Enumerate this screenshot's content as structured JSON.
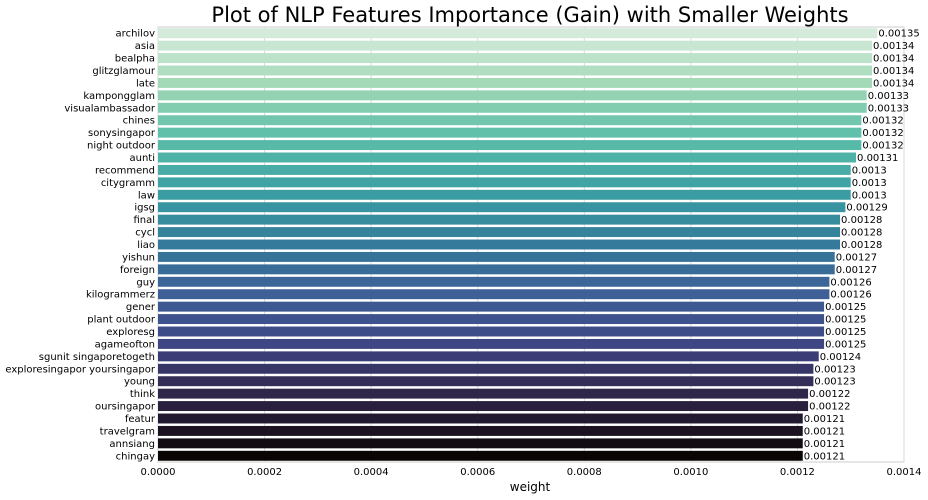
{
  "chart_data": {
    "type": "bar",
    "orientation": "horizontal",
    "title": "Plot of NLP Features Importance (Gain) with Smaller Weights",
    "xlabel": "weight",
    "ylabel": "",
    "xlim": [
      0,
      0.0014
    ],
    "x_ticks": [
      0.0,
      0.0002,
      0.0004,
      0.0006,
      0.0008,
      0.001,
      0.0012,
      0.0014
    ],
    "x_tick_labels": [
      "0.0000",
      "0.0002",
      "0.0004",
      "0.0006",
      "0.0008",
      "0.0010",
      "0.0012",
      "0.0014"
    ],
    "grid": "vertical",
    "categories": [
      "archilov",
      "asia",
      "bealpha",
      "glitzglamour",
      "late",
      "kampongglam",
      "visualambassador",
      "chines",
      "sonysingapor",
      "night outdoor",
      "aunti",
      "recommend",
      "citygramm",
      "law",
      "igsg",
      "final",
      "cycl",
      "liao",
      "yishun",
      "foreign",
      "guy",
      "kilogrammerz",
      "gener",
      "plant outdoor",
      "exploresg",
      "agameofton",
      "sgunit singaporetogeth",
      "exploresingapor yoursingapor",
      "young",
      "think",
      "oursingapor",
      "featur",
      "travelgram",
      "annsiang",
      "chingay"
    ],
    "values": [
      0.00135,
      0.00134,
      0.00134,
      0.00134,
      0.00134,
      0.00133,
      0.00133,
      0.00132,
      0.00132,
      0.00132,
      0.00131,
      0.0013,
      0.0013,
      0.0013,
      0.00129,
      0.00128,
      0.00128,
      0.00128,
      0.00127,
      0.00127,
      0.00126,
      0.00126,
      0.00125,
      0.00125,
      0.00125,
      0.00125,
      0.00124,
      0.00123,
      0.00123,
      0.00122,
      0.00122,
      0.00121,
      0.00121,
      0.00121,
      0.00121
    ],
    "value_labels": [
      "0.00135",
      "0.00134",
      "0.00134",
      "0.00134",
      "0.00134",
      "0.00133",
      "0.00133",
      "0.00132",
      "0.00132",
      "0.00132",
      "0.00131",
      "0.0013",
      "0.0013",
      "0.0013",
      "0.00129",
      "0.00128",
      "0.00128",
      "0.00128",
      "0.00127",
      "0.00127",
      "0.00126",
      "0.00126",
      "0.00125",
      "0.00125",
      "0.00125",
      "0.00125",
      "0.00124",
      "0.00123",
      "0.00123",
      "0.00122",
      "0.00122",
      "0.00121",
      "0.00121",
      "0.00121",
      "0.00121"
    ],
    "palette": "mako_r",
    "color_start": "#d4eadb",
    "color_end": "#0b0405"
  }
}
